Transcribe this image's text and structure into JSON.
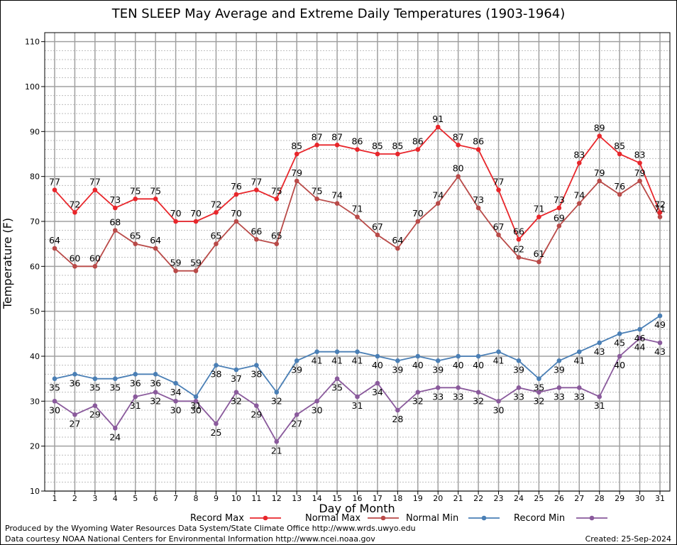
{
  "chart_data": {
    "type": "line",
    "title": "TEN SLEEP May Average and Extreme Daily Temperatures (1903-1964)",
    "xlabel": "Day of Month",
    "ylabel": "Temperature (F)",
    "ylim": [
      10,
      112
    ],
    "yticks": [
      10,
      20,
      30,
      40,
      50,
      60,
      70,
      80,
      90,
      100,
      110
    ],
    "x": [
      1,
      2,
      3,
      4,
      5,
      6,
      7,
      8,
      9,
      10,
      11,
      12,
      13,
      14,
      15,
      16,
      17,
      18,
      19,
      20,
      21,
      22,
      23,
      24,
      25,
      26,
      27,
      28,
      29,
      30,
      31
    ],
    "grid": true,
    "legend_position": "bottom",
    "series": [
      {
        "name": "Record Max",
        "color": "#e8262b",
        "label_position": "above",
        "values": [
          77,
          72,
          77,
          73,
          75,
          75,
          70,
          70,
          72,
          76,
          77,
          75,
          85,
          87,
          87,
          86,
          85,
          85,
          86,
          91,
          87,
          86,
          77,
          66,
          71,
          73,
          83,
          89,
          85,
          83,
          72
        ]
      },
      {
        "name": "Normal Max",
        "color": "#b94a48",
        "label_position": "above",
        "values": [
          64,
          60,
          60,
          68,
          65,
          64,
          59,
          59,
          65,
          70,
          66,
          65,
          79,
          75,
          74,
          71,
          67,
          64,
          70,
          74,
          80,
          73,
          67,
          62,
          61,
          69,
          74,
          79,
          76,
          79,
          71
        ]
      },
      {
        "name": "Normal Min",
        "color": "#4a7fb5",
        "label_position": "below",
        "values": [
          35,
          36,
          35,
          35,
          36,
          36,
          34,
          31,
          38,
          37,
          38,
          32,
          39,
          41,
          41,
          41,
          40,
          39,
          40,
          39,
          40,
          40,
          41,
          39,
          35,
          39,
          41,
          43,
          45,
          46,
          49
        ]
      },
      {
        "name": "Record Min",
        "color": "#8a5a9c",
        "label_position": "below",
        "values": [
          30,
          27,
          29,
          24,
          31,
          32,
          30,
          30,
          25,
          32,
          29,
          21,
          27,
          30,
          35,
          31,
          34,
          28,
          32,
          33,
          33,
          32,
          30,
          33,
          32,
          33,
          33,
          31,
          40,
          44,
          43
        ]
      }
    ]
  },
  "footer": {
    "credit_1": "Produced by the Wyoming Water Resources Data System/State Climate Office http://www.wrds.uwyo.edu",
    "credit_2": "Data courtesy NOAA National Centers for Environmental Information http://www.ncei.noaa.gov",
    "created": "Created:  25-Sep-2024"
  }
}
